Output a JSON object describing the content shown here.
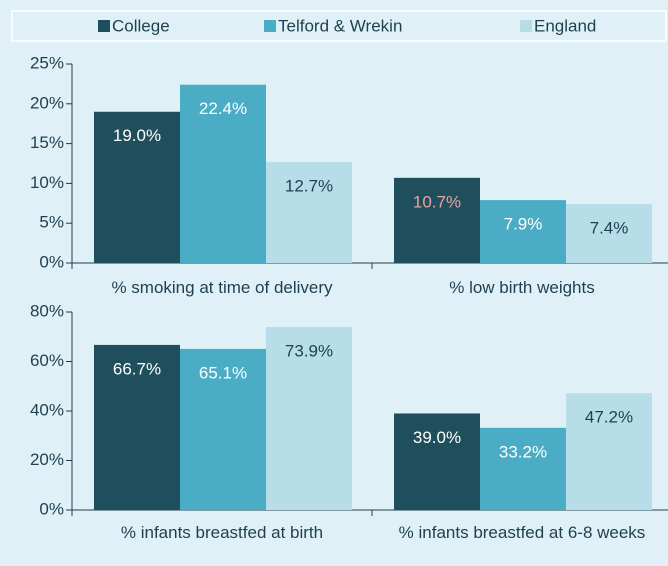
{
  "chart_data": [
    {
      "type": "bar",
      "categories": [
        "% smoking at time of delivery",
        "% low birth weights"
      ],
      "series": [
        {
          "name": "College",
          "color": "#1f4e5c",
          "values": [
            19.0,
            10.7
          ],
          "value_labels": [
            "19.0%",
            "10.7%"
          ],
          "value_label_colors": [
            "#ffffff",
            "#e8a3a3"
          ]
        },
        {
          "name": "Telford & Wrekin",
          "color": "#4bacc6",
          "values": [
            22.4,
            7.9
          ],
          "value_labels": [
            "22.4%",
            "7.9%"
          ],
          "value_label_colors": [
            "#ffffff",
            "#ffffff"
          ]
        },
        {
          "name": "England",
          "color": "#b7dde8",
          "values": [
            12.7,
            7.4
          ],
          "value_labels": [
            "12.7%",
            "7.4%"
          ],
          "value_label_colors": [
            "#1f3f4f",
            "#1f3f4f"
          ]
        }
      ],
      "ylim": [
        0,
        25
      ],
      "yticks": [
        {
          "value": 0,
          "label": "0%"
        },
        {
          "value": 5,
          "label": "5%"
        },
        {
          "value": 10,
          "label": "10%"
        },
        {
          "value": 15,
          "label": "15%"
        },
        {
          "value": 20,
          "label": "20%"
        },
        {
          "value": 25,
          "label": "25%"
        }
      ]
    },
    {
      "type": "bar",
      "categories": [
        "% infants breastfed at birth",
        "% infants breastfed at 6-8 weeks"
      ],
      "series": [
        {
          "color": "#1f4e5c",
          "values": [
            66.7,
            39.0
          ],
          "value_labels": [
            "66.7%",
            "39.0%"
          ],
          "value_label_colors": [
            "#ffffff",
            "#ffffff"
          ]
        },
        {
          "color": "#4bacc6",
          "values": [
            65.1,
            33.2
          ],
          "value_labels": [
            "65.1%",
            "33.2%"
          ],
          "value_label_colors": [
            "#ffffff",
            "#ffffff"
          ]
        },
        {
          "color": "#b7dde8",
          "values": [
            73.9,
            47.2
          ],
          "value_labels": [
            "73.9%",
            "47.2%"
          ],
          "value_label_colors": [
            "#1f3f4f",
            "#1f3f4f"
          ]
        }
      ],
      "ylim": [
        0,
        80
      ],
      "yticks": [
        {
          "value": 0,
          "label": "0%"
        },
        {
          "value": 20,
          "label": "20%"
        },
        {
          "value": 40,
          "label": "40%"
        },
        {
          "value": 60,
          "label": "60%"
        },
        {
          "value": 80,
          "label": "80%"
        }
      ]
    }
  ]
}
